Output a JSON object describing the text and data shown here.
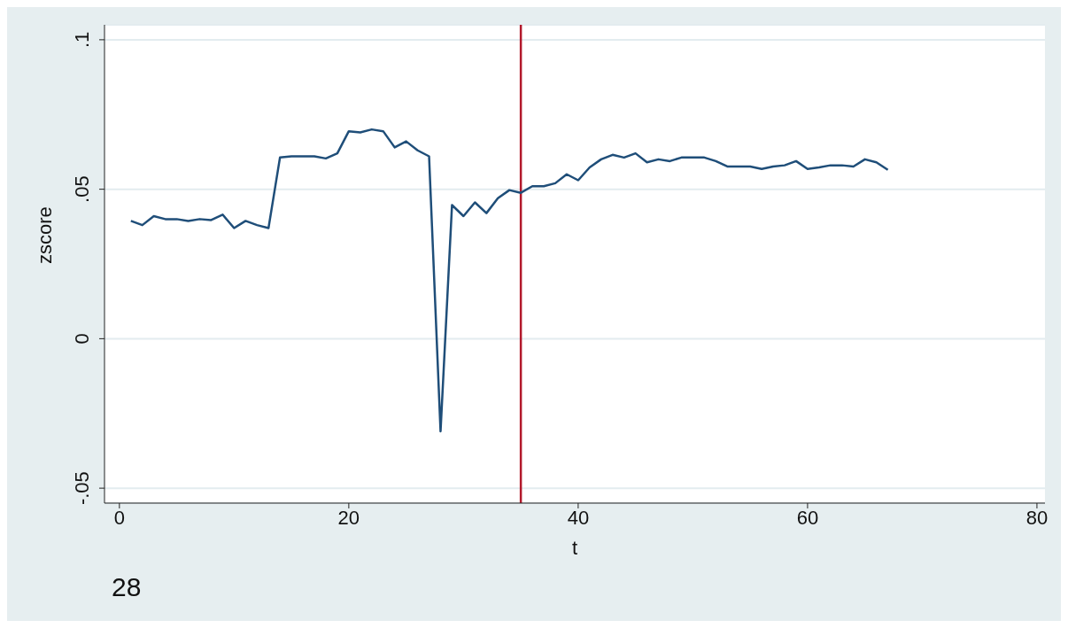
{
  "chart_data": {
    "type": "line",
    "xlabel": "t",
    "ylabel": "zscore",
    "x": [
      1,
      2,
      3,
      4,
      5,
      6,
      7,
      8,
      9,
      10,
      11,
      12,
      13,
      14,
      15,
      16,
      17,
      18,
      19,
      20,
      21,
      22,
      23,
      24,
      25,
      26,
      27,
      28,
      29,
      30,
      31,
      32,
      33,
      34,
      35,
      36,
      37,
      38,
      39,
      40,
      41,
      42,
      43,
      44,
      45,
      46,
      47,
      48,
      49,
      50,
      51,
      52,
      53,
      54,
      55,
      56,
      57,
      58,
      59,
      60,
      61,
      62,
      63,
      64,
      65,
      66,
      67
    ],
    "series": [
      {
        "color": "#1f4e79",
        "values": [
          0.0394,
          0.038,
          0.041,
          0.04,
          0.04,
          0.0394,
          0.04,
          0.0397,
          0.0415,
          0.037,
          0.0394,
          0.038,
          0.037,
          0.0606,
          0.061,
          0.061,
          0.061,
          0.0603,
          0.062,
          0.0694,
          0.069,
          0.07,
          0.0694,
          0.064,
          0.066,
          0.063,
          0.061,
          -0.031,
          0.0447,
          0.041,
          0.0456,
          0.042,
          0.047,
          0.0497,
          0.0488,
          0.051,
          0.051,
          0.052,
          0.055,
          0.053,
          0.0573,
          0.06,
          0.0615,
          0.0606,
          0.062,
          0.059,
          0.06,
          0.0594,
          0.0606,
          0.0606,
          0.0606,
          0.0594,
          0.0576,
          0.0576,
          0.0576,
          0.0568,
          0.0576,
          0.058,
          0.0594,
          0.0568,
          0.0573,
          0.058,
          0.058,
          0.0576,
          0.06,
          0.059,
          0.0565
        ]
      }
    ],
    "xlim": [
      -1.3,
      80.7
    ],
    "xticks": [
      0,
      20,
      40,
      60,
      80
    ],
    "ylim": [
      -0.055,
      0.105
    ],
    "yticks": [
      {
        "value": -0.05,
        "label": "-.05"
      },
      {
        "value": 0,
        "label": "0"
      },
      {
        "value": 0.05,
        "label": ".05"
      },
      {
        "value": 0.1,
        "label": ".1"
      }
    ],
    "grid": "y",
    "marker": "none",
    "line_style": "solid",
    "ref_lines": [
      {
        "axis": "x",
        "value": 35,
        "color": "#b2182b"
      }
    ],
    "annotations": [
      "28"
    ]
  }
}
